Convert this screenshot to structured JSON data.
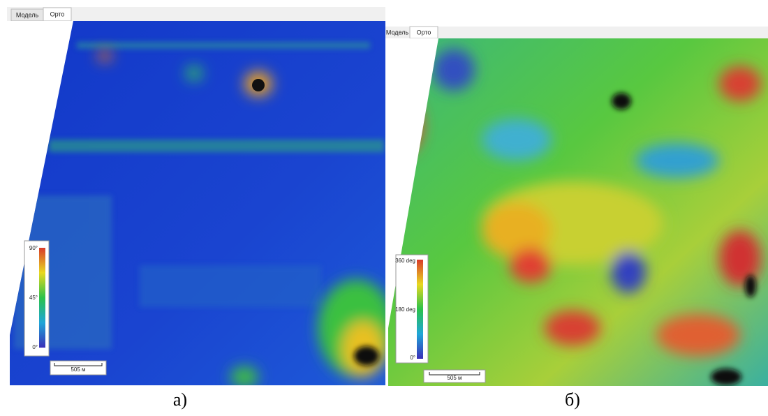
{
  "panels": [
    {
      "tabs": [
        "Модель",
        "Орто"
      ],
      "legend": {
        "labels": [
          "90°",
          "45°",
          "0°"
        ]
      },
      "scale_bar": "505 м",
      "caption": "а)"
    },
    {
      "tabs": [
        "Модель",
        "Орто"
      ],
      "legend": {
        "labels": [
          "360 deg",
          "180 deg",
          "0°"
        ]
      },
      "scale_bar": "505 м",
      "caption": "б)"
    }
  ]
}
